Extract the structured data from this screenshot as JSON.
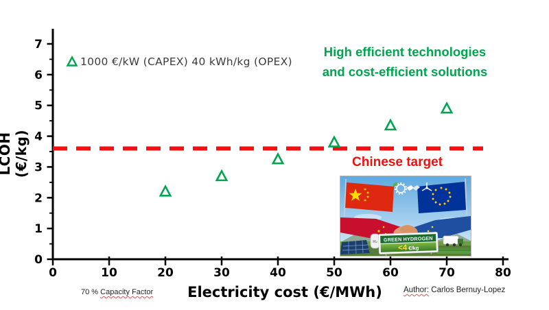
{
  "colors": {
    "green": "#00A64F",
    "red": "#ED1111",
    "axis": "#000000",
    "legend_text": "#3c3c3c"
  },
  "legend": {
    "label": "1000 €/kW (CAPEX) 40 kWh/kg (OPEX)"
  },
  "annotations": {
    "heading_line1": "High efficient technologies",
    "heading_line2": "and cost-efficient solutions",
    "target_label": "Chinese target"
  },
  "footnotes": {
    "left_prefix": "70 % ",
    "left_underlined": "Capacity Factor",
    "right_underlined": "Author:",
    "right_rest": " Carlos Bernuy-Lopez"
  },
  "chart_data": {
    "type": "scatter",
    "x": [
      20,
      30,
      40,
      50,
      60,
      70
    ],
    "y": [
      2.2,
      2.7,
      3.25,
      3.8,
      4.35,
      4.9
    ],
    "series_label": "1000 €/kW (CAPEX) 40 kWh/kg (OPEX)",
    "marker": "open-triangle",
    "marker_color": "#00A64F",
    "xlabel": "Electricity cost (€/MWh)",
    "ylabel": "LCOH (€/kg)",
    "xlim": [
      0,
      80
    ],
    "ylim": [
      0,
      7
    ],
    "x_ticks": [
      0,
      10,
      20,
      30,
      40,
      50,
      60,
      70,
      80
    ],
    "y_ticks": [
      0,
      1,
      2,
      3,
      4,
      5,
      6,
      7
    ],
    "y_minor_tick_step": 0.5,
    "grid": false,
    "legend_position": "top-left-inside",
    "target_line": {
      "value": 3.6,
      "style": "dashed",
      "color": "#ED1111",
      "label": "Chinese target"
    }
  },
  "badge": {
    "caption_band": "GREEN HYDROGEN",
    "price_value": "<4",
    "price_unit": " €/kg",
    "tank_label": "H₂",
    "alt": "China and EU flags with handshake over green hydrogen landscape"
  }
}
